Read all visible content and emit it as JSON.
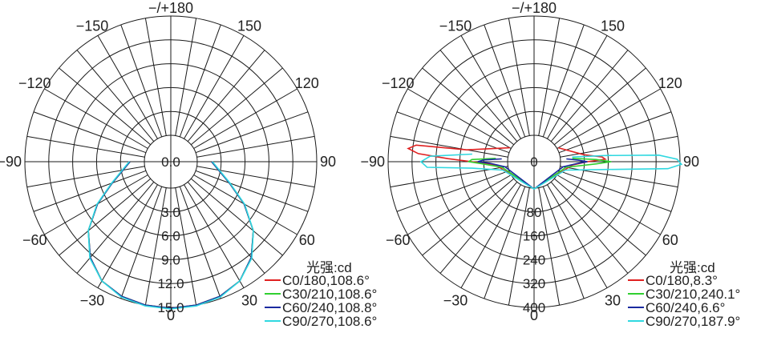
{
  "colors": {
    "c0": "#e02020",
    "c30": "#30d030",
    "c60": "#1a2aa0",
    "c90": "#30d8e0",
    "grid": "#1a1a1a"
  },
  "chart_data": [
    {
      "type": "polar",
      "title": "",
      "angle_labels": [
        {
          "deg": 0,
          "text": "0"
        },
        {
          "deg": 30,
          "text": "30"
        },
        {
          "deg": 60,
          "text": "60"
        },
        {
          "deg": 90,
          "text": "90"
        },
        {
          "deg": 120,
          "text": "120"
        },
        {
          "deg": 150,
          "text": "150"
        },
        {
          "deg": 180,
          "text": "−/+180"
        },
        {
          "deg": -150,
          "text": "−150"
        },
        {
          "deg": -120,
          "text": "−120"
        },
        {
          "deg": -90,
          "text": "−90"
        },
        {
          "deg": -60,
          "text": "−60"
        },
        {
          "deg": -30,
          "text": "−30"
        }
      ],
      "radial_labels": [
        "0.0",
        "3.0",
        "6.0",
        "9.0",
        "12.0",
        "15.0"
      ],
      "radial_max": 15,
      "legend_title": "光强:cd",
      "legend_placement": "bottom-right",
      "series": [
        {
          "name": "C0/180,108.6°",
          "color_key": "c0",
          "points": [
            [
              -90,
              1.8
            ],
            [
              -70,
              4.5
            ],
            [
              -60,
              7.3
            ],
            [
              -50,
              10.2
            ],
            [
              -40,
              12.4
            ],
            [
              -30,
              14.0
            ],
            [
              -20,
              14.7
            ],
            [
              -10,
              15.0
            ],
            [
              0,
              15.1
            ],
            [
              10,
              15.0
            ],
            [
              20,
              14.7
            ],
            [
              30,
              14.0
            ],
            [
              40,
              12.4
            ],
            [
              50,
              10.2
            ],
            [
              60,
              7.3
            ],
            [
              70,
              4.5
            ],
            [
              90,
              1.8
            ]
          ]
        },
        {
          "name": "C30/210,108.6°",
          "color_key": "c30",
          "points": [
            [
              -90,
              1.8
            ],
            [
              -70,
              4.5
            ],
            [
              -60,
              7.3
            ],
            [
              -50,
              10.2
            ],
            [
              -40,
              12.4
            ],
            [
              -30,
              14.0
            ],
            [
              -20,
              14.7
            ],
            [
              -10,
              15.0
            ],
            [
              0,
              15.1
            ],
            [
              10,
              15.0
            ],
            [
              20,
              14.7
            ],
            [
              30,
              14.0
            ],
            [
              40,
              12.4
            ],
            [
              50,
              10.2
            ],
            [
              60,
              7.3
            ],
            [
              70,
              4.5
            ],
            [
              90,
              1.8
            ]
          ]
        },
        {
          "name": "C60/240,108.8°",
          "color_key": "c60",
          "points": [
            [
              -90,
              1.8
            ],
            [
              -70,
              4.5
            ],
            [
              -60,
              7.3
            ],
            [
              -50,
              10.2
            ],
            [
              -40,
              12.4
            ],
            [
              -30,
              14.0
            ],
            [
              -20,
              14.7
            ],
            [
              -10,
              15.0
            ],
            [
              0,
              15.1
            ],
            [
              10,
              15.0
            ],
            [
              20,
              14.7
            ],
            [
              30,
              14.0
            ],
            [
              40,
              12.4
            ],
            [
              50,
              10.2
            ],
            [
              60,
              7.3
            ],
            [
              70,
              4.5
            ],
            [
              90,
              1.8
            ]
          ]
        },
        {
          "name": "C90/270,108.6°",
          "color_key": "c90",
          "points": [
            [
              -90,
              1.9
            ],
            [
              -70,
              4.6
            ],
            [
              -60,
              7.4
            ],
            [
              -50,
              10.2
            ],
            [
              -40,
              12.5
            ],
            [
              -30,
              14.0
            ],
            [
              -20,
              14.8
            ],
            [
              -10,
              15.1
            ],
            [
              0,
              15.2
            ],
            [
              10,
              15.1
            ],
            [
              20,
              14.8
            ],
            [
              30,
              14.0
            ],
            [
              40,
              12.5
            ],
            [
              50,
              10.2
            ],
            [
              60,
              7.4
            ],
            [
              70,
              4.6
            ],
            [
              90,
              1.9
            ]
          ]
        }
      ]
    },
    {
      "type": "polar",
      "title": "",
      "angle_labels": [
        {
          "deg": 0,
          "text": "0"
        },
        {
          "deg": 30,
          "text": "30"
        },
        {
          "deg": 60,
          "text": "60"
        },
        {
          "deg": 90,
          "text": "90"
        },
        {
          "deg": 120,
          "text": "120"
        },
        {
          "deg": 150,
          "text": "150"
        },
        {
          "deg": 180,
          "text": "−/+180"
        },
        {
          "deg": -150,
          "text": "−150"
        },
        {
          "deg": -120,
          "text": "−120"
        },
        {
          "deg": -90,
          "text": "−90"
        },
        {
          "deg": -60,
          "text": "−60"
        },
        {
          "deg": -30,
          "text": "−30"
        }
      ],
      "radial_labels": [
        "0",
        "80",
        "160",
        "240",
        "320",
        "400"
      ],
      "radial_max": 400,
      "legend_title": "光强:cd",
      "legend_placement": "bottom-right",
      "series": [
        {
          "name": "C0/180,8.3°",
          "color_key": "c0",
          "points": [
            [
              -120,
              5
            ],
            [
              -100,
              140
            ],
            [
              -98,
              310
            ],
            [
              -96,
              335
            ],
            [
              -94,
              300
            ],
            [
              -92,
              200
            ],
            [
              -90,
              120
            ],
            [
              -85,
              40
            ],
            [
              -70,
              10
            ],
            [
              0,
              3
            ],
            [
              70,
              10
            ],
            [
              85,
              40
            ],
            [
              90,
              90
            ],
            [
              92,
              150
            ],
            [
              94,
              140
            ],
            [
              98,
              80
            ],
            [
              120,
              5
            ]
          ]
        },
        {
          "name": "C30/210,240.1°",
          "color_key": "c30",
          "points": [
            [
              -95,
              40
            ],
            [
              -92,
              120
            ],
            [
              -90,
              130
            ],
            [
              -88,
              90
            ],
            [
              -80,
              20
            ],
            [
              0,
              3
            ],
            [
              80,
              20
            ],
            [
              88,
              120
            ],
            [
              90,
              170
            ],
            [
              92,
              120
            ],
            [
              95,
              40
            ]
          ]
        },
        {
          "name": "C60/240,6.6°",
          "color_key": "c60",
          "points": [
            [
              -95,
              20
            ],
            [
              -92,
              80
            ],
            [
              -90,
              100
            ],
            [
              -88,
              60
            ],
            [
              -80,
              10
            ],
            [
              0,
              3
            ],
            [
              80,
              10
            ],
            [
              88,
              60
            ],
            [
              90,
              90
            ],
            [
              92,
              60
            ],
            [
              95,
              20
            ]
          ]
        },
        {
          "name": "C90/270,187.9°",
          "color_key": "c90",
          "points": [
            [
              -97,
              120
            ],
            [
              -93,
              260
            ],
            [
              -90,
              290
            ],
            [
              -87,
              270
            ],
            [
              -84,
              120
            ],
            [
              -75,
              20
            ],
            [
              0,
              3
            ],
            [
              75,
              20
            ],
            [
              84,
              160
            ],
            [
              87,
              360
            ],
            [
              89,
              405
            ],
            [
              91,
              390
            ],
            [
              93,
              330
            ],
            [
              95,
              150
            ],
            [
              97,
              40
            ]
          ]
        }
      ]
    }
  ]
}
